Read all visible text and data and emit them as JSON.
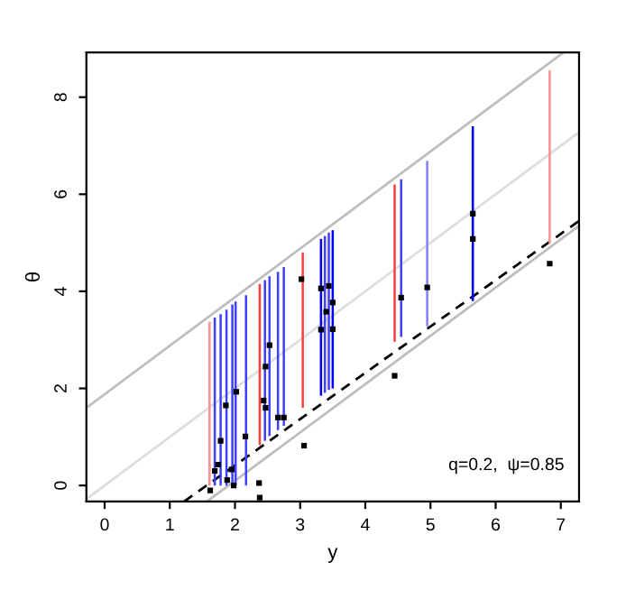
{
  "chart_data": {
    "type": "line",
    "xlabel": "y",
    "ylabel": "θ",
    "xlim": [
      -0.28,
      7.28
    ],
    "ylim": [
      -0.33,
      8.92
    ],
    "xticks": [
      0,
      1,
      2,
      3,
      4,
      5,
      6,
      7
    ],
    "yticks": [
      0,
      2,
      4,
      6,
      8
    ],
    "grid": false,
    "legend": false,
    "annotations": [
      "q=0.2,  ψ=0.85"
    ],
    "series": [
      {
        "type": "bar",
        "x": [
          1.61,
          1.69,
          1.78,
          1.87,
          1.96,
          2.01,
          2.17,
          2.38,
          2.46,
          2.53,
          2.66,
          2.75,
          3.04,
          3.32,
          3.38,
          3.44,
          3.5,
          4.45,
          4.55,
          4.95,
          5.65,
          6.83
        ],
        "base": [
          0,
          0,
          0,
          0,
          0,
          0,
          0,
          0.83,
          0.92,
          1.02,
          1.14,
          1.23,
          1.6,
          1.85,
          1.91,
          1.97,
          2.0,
          2.96,
          3.06,
          3.28,
          3.8,
          4.98
        ],
        "values": [
          3.37,
          3.46,
          3.53,
          3.62,
          3.73,
          3.79,
          3.92,
          3.32,
          3.31,
          3.29,
          3.26,
          3.27,
          3.2,
          3.23,
          3.23,
          3.24,
          3.26,
          3.24,
          3.25,
          3.41,
          3.6,
          3.57
        ],
        "colors": [
          "#ff9090",
          "#4040ff",
          "#4040ff",
          "#4040ff",
          "#4040ff",
          "#4040ff",
          "#4040ff",
          "#ff4040",
          "#4040ff",
          "#4040ff",
          "#4040ff",
          "#4040ff",
          "#ff4040",
          "#0000ff",
          "#4040ff",
          "#4040ff",
          "#0000ff",
          "#ff4040",
          "#4040ff",
          "#8080ff",
          "#0000ff",
          "#ff9090"
        ]
      },
      {
        "x": [
          -0.28,
          7.04
        ],
        "values": [
          1.6,
          8.92
        ],
        "color": "#bebebe",
        "line_style": "solid"
      },
      {
        "x": [
          -0.28,
          7.28
        ],
        "values": [
          -0.28,
          7.28
        ],
        "color": "#dddddd",
        "line_style": "solid"
      },
      {
        "x": [
          1.57,
          7.28
        ],
        "values": [
          -0.33,
          5.35
        ],
        "color": "#bebebe",
        "line_style": "solid"
      },
      {
        "x": [
          1.22,
          7.28
        ],
        "values": [
          -0.33,
          5.45
        ],
        "color": "#000000",
        "line_style": "dashed"
      },
      {
        "type": "scatter",
        "marker": "square",
        "color": "#000000",
        "x": [
          1.62,
          1.69,
          1.74,
          1.78,
          1.86,
          1.88,
          1.95,
          1.98,
          2.02,
          2.16,
          2.37,
          2.38,
          2.44,
          2.47,
          2.47,
          2.53,
          2.66,
          2.75,
          3.02,
          3.06,
          3.32,
          3.32,
          3.4,
          3.44,
          3.5,
          3.5,
          4.45,
          4.55,
          4.95,
          5.65,
          5.65,
          6.83
        ],
        "values": [
          -0.1,
          0.3,
          0.43,
          0.92,
          1.65,
          0.11,
          0.33,
          0.0,
          1.93,
          1.01,
          0.05,
          -0.25,
          1.75,
          1.6,
          2.45,
          2.89,
          1.4,
          1.4,
          4.25,
          0.82,
          4.06,
          3.21,
          3.58,
          4.11,
          3.77,
          3.22,
          2.26,
          3.87,
          4.08,
          5.6,
          5.08,
          4.57
        ]
      }
    ]
  }
}
